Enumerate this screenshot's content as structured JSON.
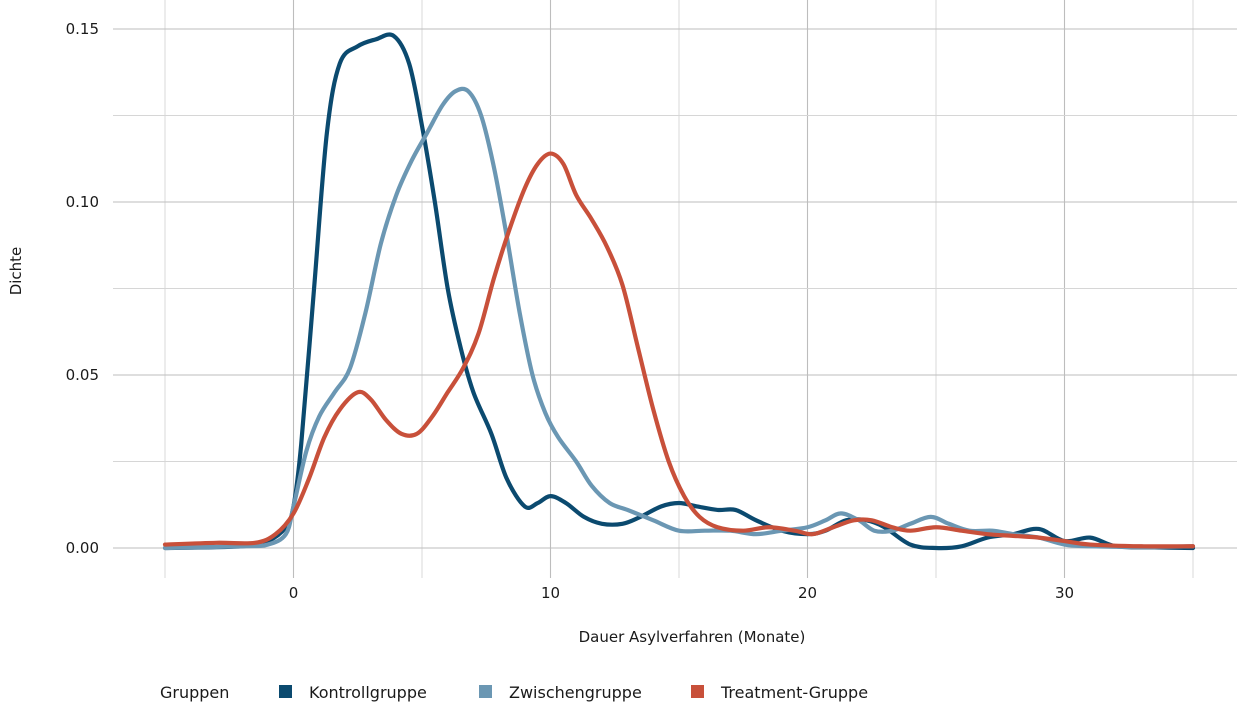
{
  "chart_data": {
    "type": "line",
    "title": "",
    "xlabel": "Dauer Asylverfahren (Monate)",
    "ylabel": "Dichte",
    "xlim": [
      -5,
      35
    ],
    "ylim": [
      0,
      0.15
    ],
    "x_ticks": [
      0,
      10,
      20,
      30
    ],
    "x_tick_labels": [
      "0",
      "10",
      "20",
      "30"
    ],
    "y_ticks": [
      0,
      0.05,
      0.1,
      0.15
    ],
    "y_tick_labels": [
      "0.00",
      "0.05",
      "0.10",
      "0.15"
    ],
    "grid": true,
    "legend": {
      "position": "bottom",
      "title": "Gruppen"
    },
    "series": [
      {
        "name": "Kontrollgruppe",
        "color": "#0b4a6f",
        "points": [
          [
            -5,
            0.0
          ],
          [
            -2,
            0.0005
          ],
          [
            -1,
            0.002
          ],
          [
            -0.3,
            0.006
          ],
          [
            0,
            0.012
          ],
          [
            0.3,
            0.03
          ],
          [
            0.8,
            0.075
          ],
          [
            1.3,
            0.12
          ],
          [
            1.8,
            0.14
          ],
          [
            2.5,
            0.145
          ],
          [
            3.2,
            0.147
          ],
          [
            3.9,
            0.148
          ],
          [
            4.5,
            0.14
          ],
          [
            5.0,
            0.122
          ],
          [
            5.5,
            0.1
          ],
          [
            6.0,
            0.075
          ],
          [
            6.5,
            0.058
          ],
          [
            7.0,
            0.045
          ],
          [
            7.7,
            0.033
          ],
          [
            8.3,
            0.02
          ],
          [
            9.0,
            0.012
          ],
          [
            9.5,
            0.013
          ],
          [
            10.0,
            0.015
          ],
          [
            10.6,
            0.013
          ],
          [
            11.3,
            0.009
          ],
          [
            12.0,
            0.007
          ],
          [
            12.8,
            0.007
          ],
          [
            13.5,
            0.009
          ],
          [
            14.3,
            0.012
          ],
          [
            15.0,
            0.013
          ],
          [
            15.7,
            0.012
          ],
          [
            16.5,
            0.011
          ],
          [
            17.2,
            0.011
          ],
          [
            18.0,
            0.008
          ],
          [
            19.0,
            0.005
          ],
          [
            20.0,
            0.004
          ],
          [
            20.7,
            0.005
          ],
          [
            21.5,
            0.008
          ],
          [
            22.3,
            0.008
          ],
          [
            23.0,
            0.006
          ],
          [
            24.0,
            0.001
          ],
          [
            25.0,
            0.0
          ],
          [
            26.0,
            0.0005
          ],
          [
            27.0,
            0.003
          ],
          [
            28.0,
            0.004
          ],
          [
            29.0,
            0.0055
          ],
          [
            30.0,
            0.002
          ],
          [
            31.0,
            0.003
          ],
          [
            32.0,
            0.0005
          ],
          [
            33.5,
            0.0002
          ],
          [
            35.0,
            0.0
          ]
        ]
      },
      {
        "name": "Zwischengruppe",
        "color": "#6b97b3",
        "points": [
          [
            -5,
            0.0
          ],
          [
            -2,
            0.0005
          ],
          [
            -1,
            0.001
          ],
          [
            -0.3,
            0.004
          ],
          [
            0,
            0.012
          ],
          [
            0.5,
            0.028
          ],
          [
            1.0,
            0.038
          ],
          [
            1.6,
            0.045
          ],
          [
            2.2,
            0.052
          ],
          [
            2.8,
            0.068
          ],
          [
            3.4,
            0.088
          ],
          [
            4.0,
            0.102
          ],
          [
            4.6,
            0.112
          ],
          [
            5.2,
            0.12
          ],
          [
            5.8,
            0.128
          ],
          [
            6.3,
            0.132
          ],
          [
            6.8,
            0.132
          ],
          [
            7.3,
            0.125
          ],
          [
            7.8,
            0.11
          ],
          [
            8.3,
            0.09
          ],
          [
            8.8,
            0.068
          ],
          [
            9.3,
            0.05
          ],
          [
            9.8,
            0.039
          ],
          [
            10.3,
            0.032
          ],
          [
            11.0,
            0.025
          ],
          [
            11.6,
            0.018
          ],
          [
            12.3,
            0.013
          ],
          [
            13.0,
            0.011
          ],
          [
            14.0,
            0.008
          ],
          [
            15.0,
            0.005
          ],
          [
            16.0,
            0.005
          ],
          [
            17.0,
            0.005
          ],
          [
            18.0,
            0.004
          ],
          [
            19.0,
            0.005
          ],
          [
            20.0,
            0.006
          ],
          [
            20.7,
            0.008
          ],
          [
            21.3,
            0.01
          ],
          [
            22.0,
            0.008
          ],
          [
            22.6,
            0.005
          ],
          [
            23.3,
            0.005
          ],
          [
            24.0,
            0.007
          ],
          [
            24.8,
            0.009
          ],
          [
            25.5,
            0.007
          ],
          [
            26.3,
            0.005
          ],
          [
            27.2,
            0.005
          ],
          [
            28.0,
            0.004
          ],
          [
            29.0,
            0.003
          ],
          [
            30.0,
            0.001
          ],
          [
            31.0,
            0.0005
          ],
          [
            33.0,
            0.0003
          ],
          [
            35.0,
            0.0005
          ]
        ]
      },
      {
        "name": "Treatment-Gruppe",
        "color": "#c8503a",
        "points": [
          [
            -5,
            0.001
          ],
          [
            -3,
            0.0015
          ],
          [
            -1.5,
            0.0015
          ],
          [
            -0.7,
            0.004
          ],
          [
            0,
            0.01
          ],
          [
            0.6,
            0.02
          ],
          [
            1.2,
            0.032
          ],
          [
            1.8,
            0.04
          ],
          [
            2.5,
            0.045
          ],
          [
            3.0,
            0.043
          ],
          [
            3.6,
            0.037
          ],
          [
            4.2,
            0.033
          ],
          [
            4.8,
            0.033
          ],
          [
            5.4,
            0.038
          ],
          [
            6.0,
            0.045
          ],
          [
            6.6,
            0.052
          ],
          [
            7.2,
            0.062
          ],
          [
            7.8,
            0.078
          ],
          [
            8.4,
            0.092
          ],
          [
            9.0,
            0.104
          ],
          [
            9.5,
            0.111
          ],
          [
            10.0,
            0.114
          ],
          [
            10.5,
            0.111
          ],
          [
            11.0,
            0.102
          ],
          [
            11.6,
            0.095
          ],
          [
            12.2,
            0.087
          ],
          [
            12.8,
            0.076
          ],
          [
            13.4,
            0.058
          ],
          [
            14.0,
            0.04
          ],
          [
            14.6,
            0.025
          ],
          [
            15.2,
            0.015
          ],
          [
            15.8,
            0.009
          ],
          [
            16.5,
            0.006
          ],
          [
            17.5,
            0.005
          ],
          [
            18.5,
            0.006
          ],
          [
            19.5,
            0.005
          ],
          [
            20.2,
            0.004
          ],
          [
            21.0,
            0.006
          ],
          [
            21.8,
            0.008
          ],
          [
            22.5,
            0.008
          ],
          [
            23.3,
            0.006
          ],
          [
            24.0,
            0.005
          ],
          [
            25.0,
            0.006
          ],
          [
            26.0,
            0.005
          ],
          [
            27.0,
            0.004
          ],
          [
            28.0,
            0.0035
          ],
          [
            29.0,
            0.003
          ],
          [
            30.0,
            0.002
          ],
          [
            31.0,
            0.001
          ],
          [
            33.0,
            0.0005
          ],
          [
            35.0,
            0.0005
          ]
        ]
      }
    ]
  }
}
